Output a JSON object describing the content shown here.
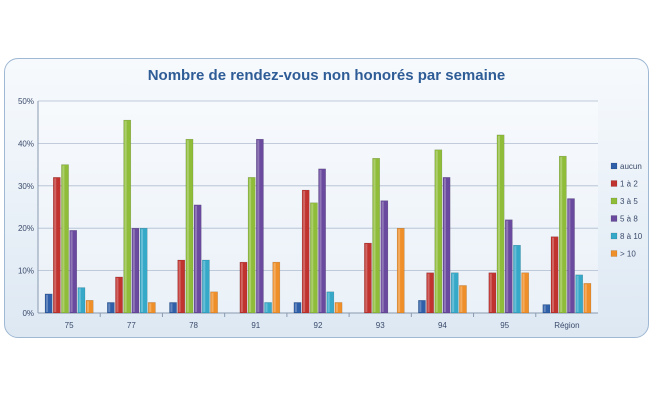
{
  "chart_data": {
    "type": "bar",
    "title": "Nombre de rendez-vous non honorés par semaine",
    "xlabel": "",
    "ylabel": "",
    "ylim": [
      0,
      50
    ],
    "y_ticks": [
      "0%",
      "10%",
      "20%",
      "30%",
      "40%",
      "50%"
    ],
    "y_tick_values": [
      0,
      10,
      20,
      30,
      40,
      50
    ],
    "grid": true,
    "legend_position": "right",
    "categories": [
      "75",
      "77",
      "78",
      "91",
      "92",
      "93",
      "94",
      "95",
      "Région"
    ],
    "series": [
      {
        "name": "aucun",
        "color": "#2f5fa8",
        "values": [
          4.5,
          2.5,
          2.5,
          0,
          2.5,
          0,
          3,
          0,
          2
        ]
      },
      {
        "name": "1 à 2",
        "color": "#c0332f",
        "values": [
          32,
          8.5,
          12.5,
          12,
          29,
          16.5,
          9.5,
          9.5,
          18
        ]
      },
      {
        "name": "3 à 5",
        "color": "#8fbd3a",
        "values": [
          35,
          45.5,
          41,
          32,
          26,
          36.5,
          38.5,
          42,
          37
        ]
      },
      {
        "name": "5 à 8",
        "color": "#6a4a9e",
        "values": [
          19.5,
          20,
          25.5,
          41,
          34,
          26.5,
          32,
          22,
          27
        ]
      },
      {
        "name": "8 à 10",
        "color": "#36a9c9",
        "values": [
          6,
          20,
          12.5,
          2.5,
          5,
          0,
          9.5,
          16,
          9
        ]
      },
      {
        "name": "> 10",
        "color": "#ef8f2a",
        "values": [
          3,
          2.5,
          5,
          12,
          2.5,
          20,
          6.5,
          9.5,
          7
        ]
      }
    ]
  }
}
